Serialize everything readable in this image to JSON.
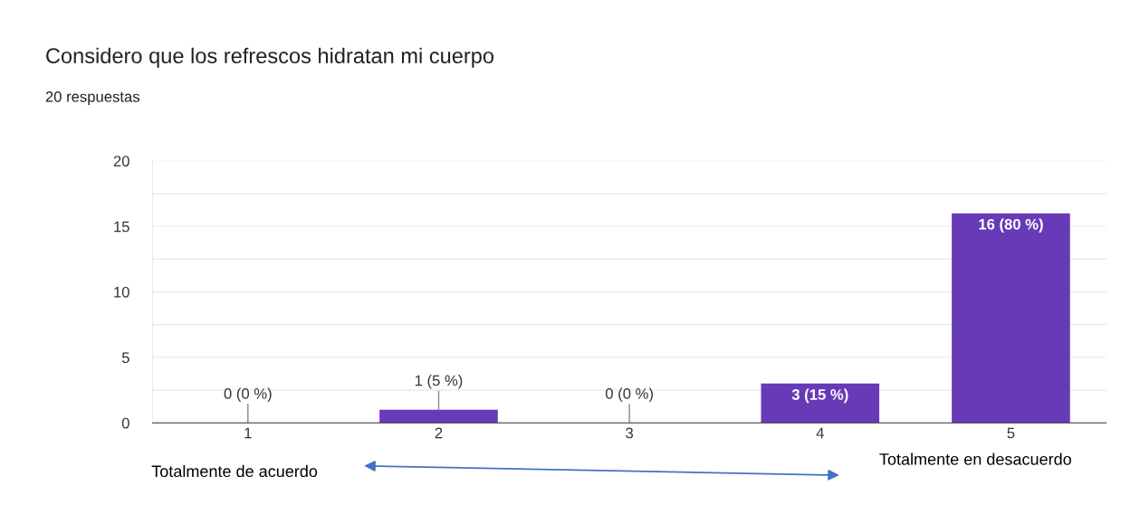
{
  "chart_data": {
    "type": "bar",
    "title": "Considero que los refrescos hidratan mi cuerpo",
    "subtitle": "20 respuestas",
    "categories": [
      "1",
      "2",
      "3",
      "4",
      "5"
    ],
    "values": [
      0,
      1,
      0,
      3,
      16
    ],
    "value_labels": [
      "0 (0 %)",
      "1 (5 %)",
      "0 (0 %)",
      "3 (15 %)",
      "16 (80 %)"
    ],
    "color": "#673ab7",
    "ylim": [
      0,
      20
    ],
    "yticks": [
      0,
      {
        "value": 2.5,
        "label": null
      },
      5,
      {
        "value": 7.5,
        "label": null
      },
      10,
      {
        "value": 12.5,
        "label": null
      },
      15,
      {
        "value": 17.5,
        "label": null
      },
      20
    ],
    "grid": "y",
    "legend": false,
    "annotations": [
      "Totalmente de acuerdo",
      "Totalmente en desacuerdo"
    ]
  }
}
